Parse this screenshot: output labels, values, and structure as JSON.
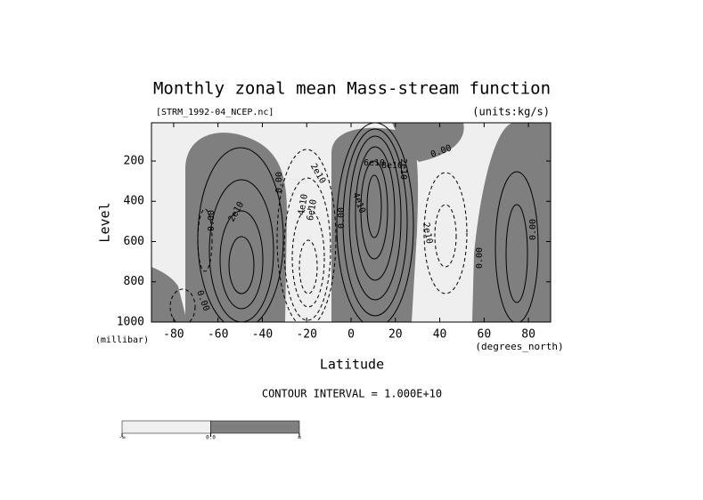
{
  "chart_data": {
    "type": "contour",
    "title": "Monthly zonal mean Mass-stream function",
    "subtitle_left": "[STRM_1992-04_NCEP.nc]",
    "subtitle_right": "(units:kg/s)",
    "x_label": "Latitude",
    "x_units": "(degrees_north)",
    "y_label": "Level",
    "y_units": "(millibar)",
    "xlim": [
      -90,
      90
    ],
    "xticks": [
      -80,
      -60,
      -40,
      -20,
      0,
      20,
      40,
      60,
      80
    ],
    "ylim": [
      1000,
      10
    ],
    "yticks": [
      200,
      400,
      600,
      800,
      1000
    ],
    "contour_interval_text": "CONTOUR INTERVAL = 1.000E+10",
    "contour_labels": [
      "0.00",
      "2e10",
      "0.00",
      "2e10",
      "4e10",
      "6e10",
      "0.00",
      "6e10",
      "8e10",
      "2e10",
      "4e10",
      "0.00",
      "2e10",
      "0.00",
      "0.00",
      "0.00"
    ],
    "colorbar": {
      "colors": [
        "#efefef",
        "#7f7f7f"
      ],
      "labels": [
        "-∞",
        "0.0",
        "∞"
      ]
    }
  }
}
